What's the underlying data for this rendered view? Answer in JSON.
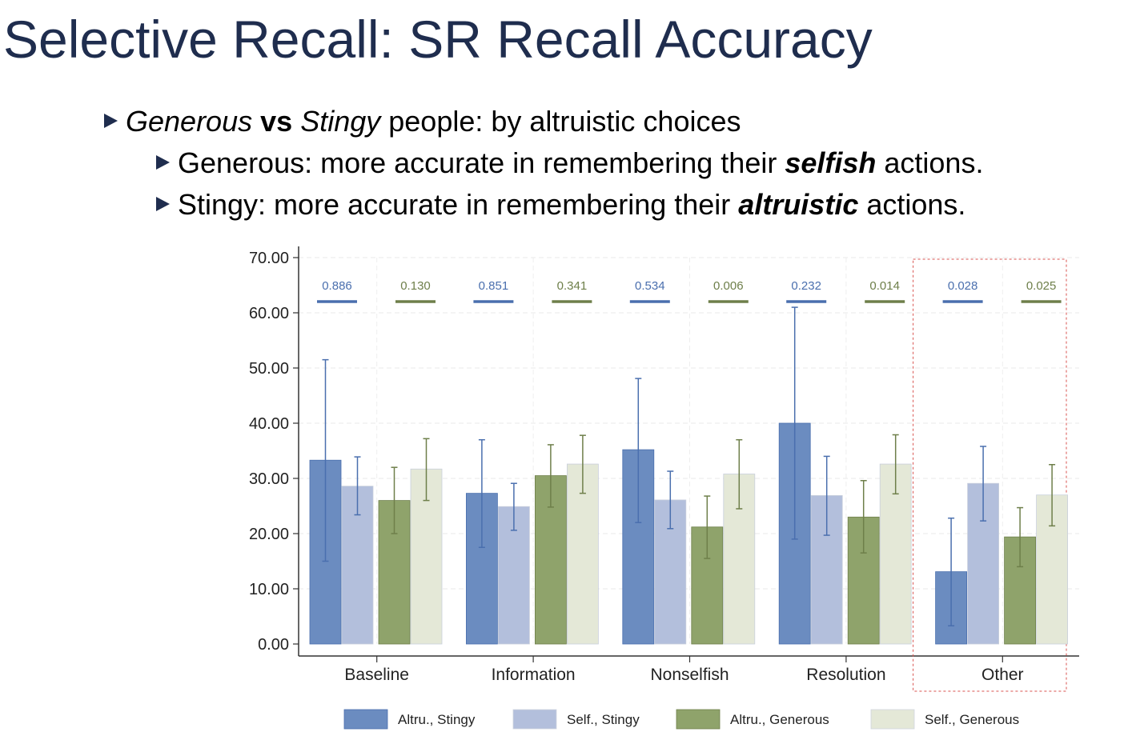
{
  "slide": {
    "title": "Selective Recall: SR Recall Accuracy",
    "bullet1": {
      "part1": "Generous",
      "part2": " ",
      "part3": "vs",
      "part4": " ",
      "part5": "Stingy",
      "part6": " people: by altruistic choices"
    },
    "bullet2": {
      "part1": "Generous: more accurate in remembering their ",
      "part2": "selfish",
      "part3": " actions."
    },
    "bullet3": {
      "part1": "Stingy: more accurate in remembering their ",
      "part2": "altruistic",
      "part3": " actions."
    }
  },
  "colors": {
    "title": "#1f2d4e",
    "altru_stingy": "#6b8cc0",
    "self_stingy": "#b3bfdc",
    "altru_generous": "#8fa36b",
    "self_generous": "#e4e8d7",
    "err_blue": "#4a6fae",
    "err_green": "#6e7f4a",
    "pval_blue": "#4a6fae",
    "pval_green": "#6e7f4a",
    "highlight_box": "#d9534f"
  },
  "chart_data": {
    "type": "bar",
    "categories": [
      "Baseline",
      "Information",
      "Nonselfish",
      "Resolution",
      "Other"
    ],
    "ylim": [
      0,
      70
    ],
    "yticks": [
      "0.00",
      "10.00",
      "20.00",
      "30.00",
      "40.00",
      "50.00",
      "60.00",
      "70.00"
    ],
    "ytick_values": [
      0,
      10,
      20,
      30,
      40,
      50,
      60,
      70
    ],
    "series": [
      {
        "name": "Altru., Stingy",
        "color_key": "altru_stingy",
        "err_key": "err_blue",
        "values": [
          33.3,
          27.3,
          35.2,
          40.0,
          13.1
        ],
        "lower": [
          15.0,
          17.5,
          22.0,
          19.0,
          3.3
        ],
        "upper": [
          51.5,
          37.0,
          48.1,
          61.0,
          22.8
        ]
      },
      {
        "name": "Self., Stingy",
        "color_key": "self_stingy",
        "err_key": "err_blue",
        "values": [
          28.6,
          24.9,
          26.1,
          26.9,
          29.1
        ],
        "lower": [
          23.4,
          20.6,
          20.9,
          19.7,
          22.3
        ],
        "upper": [
          33.9,
          29.1,
          31.3,
          34.0,
          35.8
        ]
      },
      {
        "name": "Altru., Generous",
        "color_key": "altru_generous",
        "err_key": "err_green",
        "values": [
          26.0,
          30.5,
          21.2,
          23.0,
          19.4
        ],
        "lower": [
          20.0,
          24.8,
          15.5,
          16.5,
          14.0
        ],
        "upper": [
          32.0,
          36.1,
          26.8,
          29.6,
          24.7
        ]
      },
      {
        "name": "Self., Generous",
        "color_key": "self_generous",
        "err_key": "err_green",
        "values": [
          31.7,
          32.6,
          30.8,
          32.6,
          27.0
        ],
        "lower": [
          26.0,
          27.3,
          24.5,
          27.2,
          21.4
        ],
        "upper": [
          37.2,
          37.8,
          37.0,
          37.9,
          32.5
        ]
      }
    ],
    "pvalues": [
      {
        "stingy": "0.886",
        "generous": "0.130"
      },
      {
        "stingy": "0.851",
        "generous": "0.341"
      },
      {
        "stingy": "0.534",
        "generous": "0.006"
      },
      {
        "stingy": "0.232",
        "generous": "0.014"
      },
      {
        "stingy": "0.028",
        "generous": "0.025"
      }
    ],
    "highlight_category": "Other",
    "grid": true,
    "legend_position": "bottom"
  }
}
